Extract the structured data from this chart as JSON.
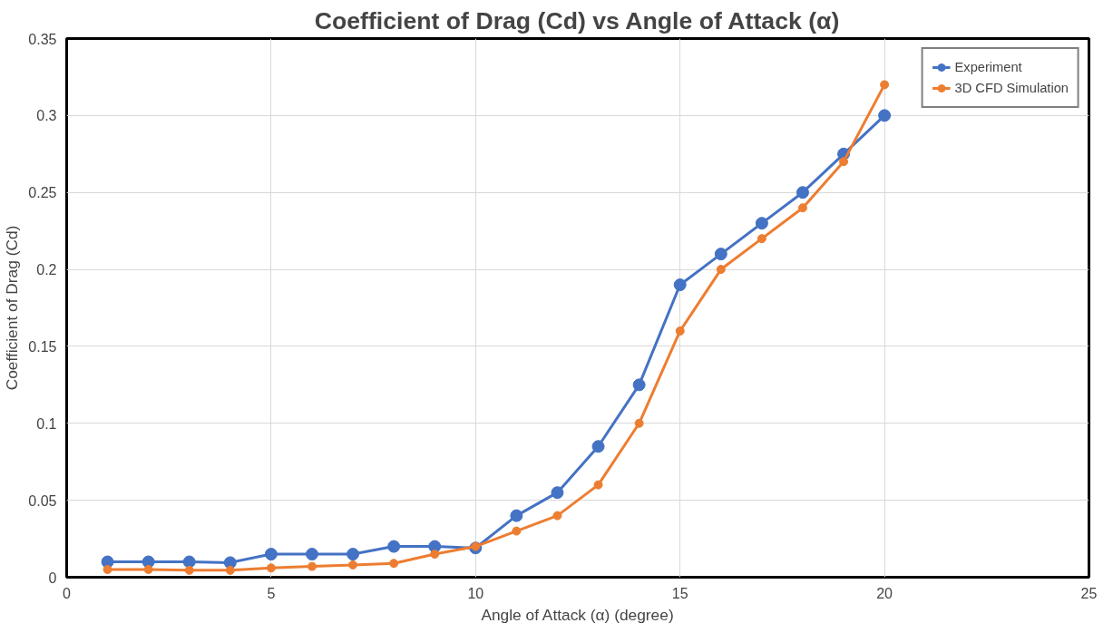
{
  "chart_data": {
    "type": "line",
    "title": "Coefficient of Drag (Cd) vs Angle of Attack (α)",
    "xlabel": "Angle of Attack (α) (degree)",
    "ylabel": "Coefficient of Drag (Cd)",
    "x": [
      1,
      2,
      3,
      4,
      5,
      6,
      7,
      8,
      9,
      10,
      11,
      12,
      13,
      14,
      15,
      16,
      17,
      18,
      19,
      20
    ],
    "series": [
      {
        "name": "Experiment",
        "color": "#4472c4",
        "values": [
          0.01,
          0.01,
          0.01,
          0.0095,
          0.015,
          0.015,
          0.015,
          0.02,
          0.02,
          0.019,
          0.04,
          0.055,
          0.085,
          0.125,
          0.19,
          0.21,
          0.23,
          0.25,
          0.275,
          0.3
        ]
      },
      {
        "name": "3D CFD Simulation",
        "color": "#ed7d31",
        "values": [
          0.005,
          0.005,
          0.0045,
          0.0045,
          0.006,
          0.007,
          0.008,
          0.009,
          0.015,
          0.02,
          0.03,
          0.04,
          0.06,
          0.1,
          0.16,
          0.2,
          0.22,
          0.24,
          0.27,
          0.32
        ]
      }
    ],
    "xlim": [
      0,
      25
    ],
    "xticks": [
      0,
      5,
      10,
      15,
      20,
      25
    ],
    "ylim": [
      0,
      0.35
    ],
    "yticks": [
      0,
      0.05,
      0.1,
      0.15,
      0.2,
      0.25,
      0.3,
      0.35
    ],
    "grid": true,
    "legend": "top right",
    "marker": "circle",
    "line_style": "solid"
  }
}
